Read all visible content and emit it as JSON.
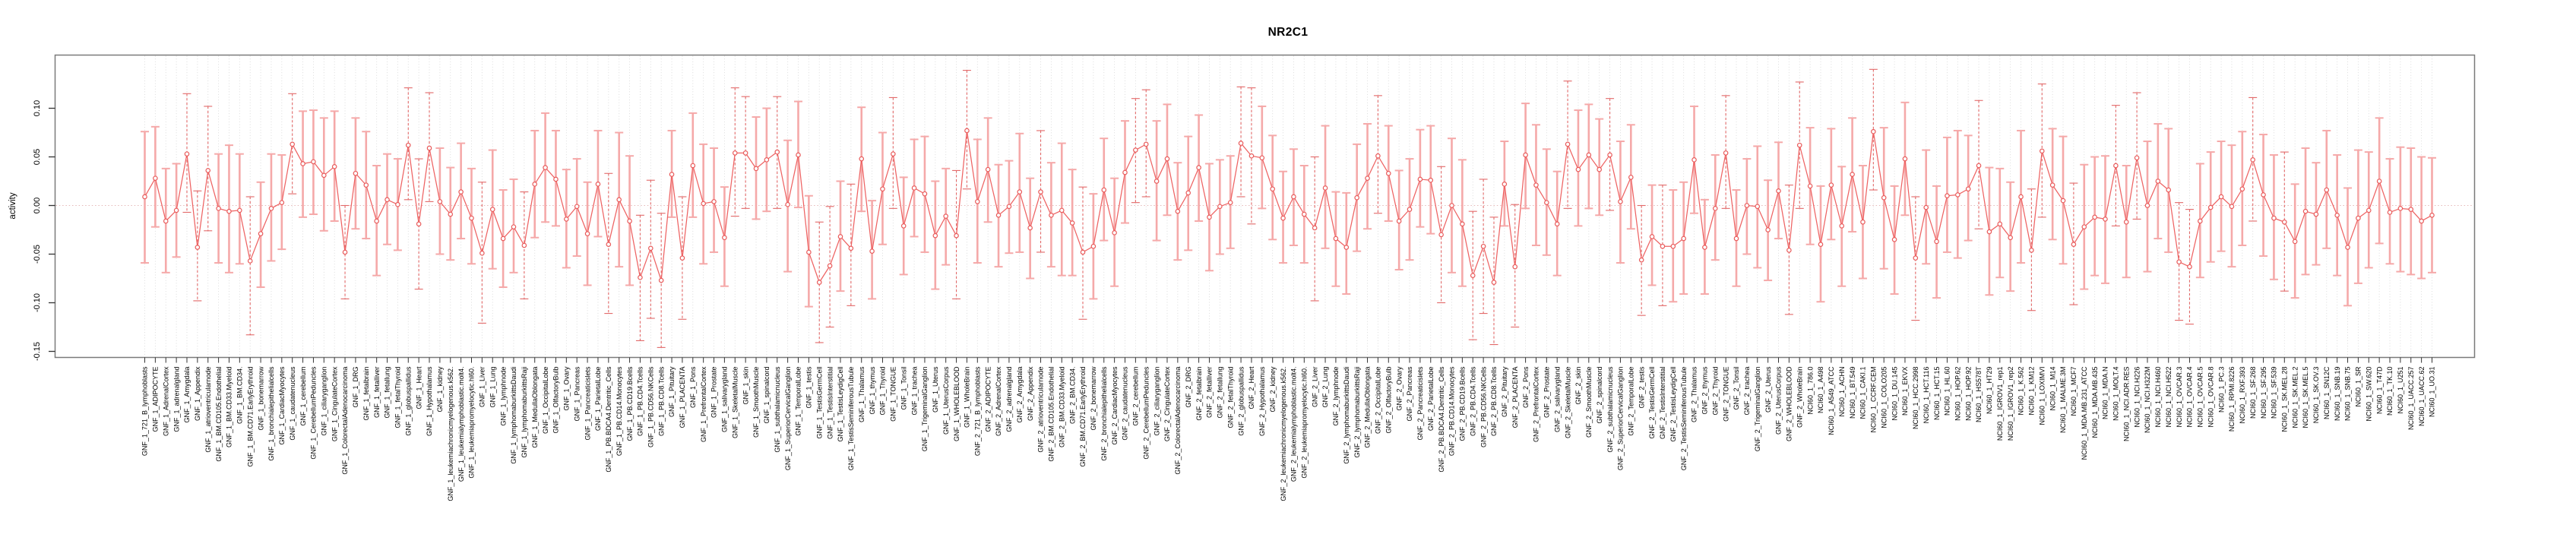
{
  "chart_data": {
    "type": "line",
    "subtype": "point-estimates-with-error-bars",
    "title": "NR2C1",
    "ylabel": "activity",
    "xlabel": "",
    "ylim": [
      -0.156,
      0.155
    ],
    "ytick_labels": [
      "0.10",
      "0.05",
      "0.00",
      "-0.05",
      "-0.10",
      "-0.15"
    ],
    "grid": "vertical-dotted-per-category-plus-dotted-zero-line",
    "legend_position": "none",
    "sample_groups": [
      "GNF_1",
      "GNF_2",
      "NCI60_1"
    ],
    "colors": {
      "bar_solid": "#f5a9a9",
      "bar_dashed": "#e26868",
      "line": "#ee6363",
      "marker": "#e95c5c",
      "grid": "#d8d8d8",
      "zero_line": "#e5b8b8",
      "box": "#7a7a7a",
      "tick": "#333333",
      "text": "#000000"
    },
    "categories": [
      "GNF_1_721_B_lymphoblasts",
      "GNF_1_ADIPOCYTE",
      "GNF_1_AdrenalCortex",
      "GNF_1_adrenalgland",
      "GNF_1_Amygdala",
      "GNF_1_Appendix",
      "GNF_1_atrioventricularnode",
      "GNF_1_BM.CD105.Endothelial",
      "GNF_1_BM.CD33.Myeloid",
      "GNF_1_BM.CD34.",
      "GNF_1_BM.CD71.EarlyErythroid",
      "GNF_1_bonemarrow",
      "GNF_1_bronchialepithelialcells",
      "GNF_1_CardiacMyocytes",
      "GNF_1_caudatenucleus",
      "GNF_1_cerebellum",
      "GNF_1_CerebellumPeduncles",
      "GNF_1_ciliaryganglion",
      "GNF_1_CingulateCortex",
      "GNF_1_ColorectalAdenocarcinoma",
      "GNF_1_DRG",
      "GNF_1_fetalbrain",
      "GNF_1_fetalliver",
      "GNF_1_fetallung",
      "GNF_1_fetalThyroid",
      "GNF_1_globuspallidus",
      "GNF_1_Heart",
      "GNF_1_Hypothalamus",
      "GNF_1_kidney",
      "GNF_1_leukemiachronicmyelogenous.k562.",
      "GNF_1_leukemialymphoblastic.molt4.",
      "GNF_1_leukemiapromyelocytic.hl60.",
      "GNF_1_Liver",
      "GNF_1_Lung",
      "GNF_1_lymphnode",
      "GNF_1_lymphomaburkittsDaudi",
      "GNF_1_lymphomaburkittsRaji",
      "GNF_1_MedullaOblongata",
      "GNF_1_OccipitalLobe",
      "GNF_1_OlfactoryBulb",
      "GNF_1_Ovary",
      "GNF_1_Pancreas",
      "GNF_1_Pancreaticislets",
      "GNF_1_ParietalLobe",
      "GNF_1_PB.BDCA4.Dentritic_Cells",
      "GNF_1_PB.CD14.Monocytes",
      "GNF_1_PB.CD19.Bcells",
      "GNF_1_PB.CD4.Tcells",
      "GNF_1_PB.CD56.NKCells",
      "GNF_1_PB.CD8.Tcells",
      "GNF_1_Pituitary",
      "GNF_1_PLACENTA",
      "GNF_1_Pons",
      "GNF_1_PrefrontalCortex",
      "GNF_1_Prostate",
      "GNF_1_salivarygland",
      "GNF_1_SkeletalMuscle",
      "GNF_1_skin",
      "GNF_1_SmoothMuscle",
      "GNF_1_spinalcord",
      "GNF_1_subthalamicnucleus",
      "GNF_1_SuperiorCervicalGanglion",
      "GNF_1_TemporalLobe",
      "GNF_1_testis",
      "GNF_1_TestisGermCell",
      "GNF_1_TestisInterstitial",
      "GNF_1_TestisLeydigCell",
      "GNF_1_TestisSeminiferousTubule",
      "GNF_1_Thalamus",
      "GNF_1_thymus",
      "GNF_1_Thyroid",
      "GNF_1_TONGUE",
      "GNF_1_Tonsil",
      "GNF_1_trachea",
      "GNF_1_TrigeminalGanglion",
      "GNF_1_Uterus",
      "GNF_1_UterusCorpus",
      "GNF_1_WHOLEBLOOD",
      "GNF_1_WholeBrain",
      "GNF_2_721_B_lymphoblasts",
      "GNF_2_ADIPOCYTE",
      "GNF_2_AdrenalCortex",
      "GNF_2_adrenalgland",
      "GNF_2_Amygdala",
      "GNF_2_Appendix",
      "GNF_2_atrioventricularnode",
      "GNF_2_BM.CD105.Endothelial",
      "GNF_2_BM.CD33.Myeloid",
      "GNF_2_BM.CD34.",
      "GNF_2_BM.CD71.EarlyErythroid",
      "GNF_2_bonemarrow",
      "GNF_2_bronchialepithelialcells",
      "GNF_2_CardiacMyocytes",
      "GNF_2_caudatenucleus",
      "GNF_2_cerebellum",
      "GNF_2_CerebellumPeduncles",
      "GNF_2_ciliaryganglion",
      "GNF_2_CingulateCortex",
      "GNF_2_ColorectalAdenocarcinoma",
      "GNF_2_DRG",
      "GNF_2_fetalbrain",
      "GNF_2_fetalliver",
      "GNF_2_fetallung",
      "GNF_2_fetalThyroid",
      "GNF_2_globuspallidus",
      "GNF_2_Heart",
      "GNF_2_Hypothalamus",
      "GNF_2_kidney",
      "GNF_2_leukemiachronicmyelogenous.k562.",
      "GNF_2_leukemialymphoblastic.molt4.",
      "GNF_2_leukemiapromyelocytic.hl60.",
      "GNF_2_Liver",
      "GNF_2_Lung",
      "GNF_2_lymphnode",
      "GNF_2_lymphomaburkittsDaudi",
      "GNF_2_lymphomaburkittsRaji",
      "GNF_2_MedullaOblongata",
      "GNF_2_OccipitalLobe",
      "GNF_2_OlfactoryBulb",
      "GNF_2_Ovary",
      "GNF_2_Pancreas",
      "GNF_2_Pancreaticislets",
      "GNF_2_ParietalLobe",
      "GNF_2_PB.BDCA4.Dentritic_Cells",
      "GNF_2_PB.CD14.Monocytes",
      "GNF_2_PB.CD19.Bcells",
      "GNF_2_PB.CD4.Tcells",
      "GNF_2_PB.CD56.NKCells",
      "GNF_2_PB.CD8.Tcells",
      "GNF_2_Pituitary",
      "GNF_2_PLACENTA",
      "GNF_2_Pons",
      "GNF_2_PrefrontalCortex",
      "GNF_2_Prostate",
      "GNF_2_salivarygland",
      "GNF_2_SkeletalMuscle",
      "GNF_2_skin",
      "GNF_2_SmoothMuscle",
      "GNF_2_spinalcord",
      "GNF_2_subthalamicnucleus",
      "GNF_2_SuperiorCervicalGanglion",
      "GNF_2_TemporalLobe",
      "GNF_2_testis",
      "GNF_2_TestisGermCell",
      "GNF_2_TestisInterstitial",
      "GNF_2_TestisLeydigCell",
      "GNF_2_TestisSeminiferousTubule",
      "GNF_2_Thalamus",
      "GNF_2_thymus",
      "GNF_2_Thyroid",
      "GNF_2_TONGUE",
      "GNF_2_Tonsil",
      "GNF_2_trachea",
      "GNF_2_TrigeminalGanglion",
      "GNF_2_Uterus",
      "GNF_2_UterusCorpus",
      "GNF_2_WHOLEBLOOD",
      "GNF_2_WholeBrain",
      "NCI60_1_786.0",
      "NCI60_1_A498",
      "NCI60_1_A549_ATCC",
      "NCI60_1_ACHN",
      "NCI60_1_BT.549",
      "NCI60_1_CAKI.1",
      "NCI60_1_CCRF.CEM",
      "NCI60_1_COLO205",
      "NCI60_1_DU.145",
      "NCI60_1_EKVX",
      "NCI60_1_HCC.2998",
      "NCI60_1_HCT.116",
      "NCI60_1_HCT.15",
      "NCI60_1_HL.60",
      "NCI60_1_HOP.62",
      "NCI60_1_HOP.92",
      "NCI60_1_HS578T",
      "NCI60_1_HT29",
      "NCI60_1_IGROV1_rep1",
      "NCI60_1_IGROV1_rep2",
      "NCI60_1_K.562",
      "NCI60_1_KM12",
      "NCI60_1_LOXIMVI",
      "NCI60_1_M14",
      "NCI60_1_MALME.3M",
      "NCI60_1_MCF7",
      "NCI60_1_MDA.MB.231_ATCC",
      "NCI60_1_MDA.MB.435",
      "NCI60_1_MDA.N",
      "NCI60_1_MOLT.4",
      "NCI60_1_NCI.ADR.RES",
      "NCI60_1_NCI.H226",
      "NCI60_1_NCI.H322M",
      "NCI60_1_NCI.H460",
      "NCI60_1_NCI.H522",
      "NCI60_1_OVCAR.3",
      "NCI60_1_OVCAR.4",
      "NCI60_1_OVCAR.5",
      "NCI60_1_OVCAR.8",
      "NCI60_1_PC.3",
      "NCI60_1_RPMI.8226",
      "NCI60_1_RXF.393",
      "NCI60_1_SF.268",
      "NCI60_1_SF.295",
      "NCI60_1_SF.539",
      "NCI60_1_SK.MEL.28",
      "NCI60_1_SK.MEL.2",
      "NCI60_1_SK.MEL.5",
      "NCI60_1_SK.OV.3",
      "NCI60_1_SN12C",
      "NCI60_1_SNB.19",
      "NCI60_1_SNB.75",
      "NCI60_1_SR",
      "NCI60_1_SW.620",
      "NCI60_1_T47D",
      "NCI60_1_TK.10",
      "NCI60_1_U251",
      "NCI60_1_UACC.257",
      "NCI60_1_UACC.62",
      "NCI60_1_UO.31"
    ],
    "values": [
      0.009,
      0.028,
      -0.016,
      -0.005,
      0.053,
      -0.043,
      0.036,
      -0.003,
      -0.006,
      -0.005,
      -0.057,
      -0.029,
      -0.003,
      0.003,
      0.063,
      0.043,
      0.045,
      0.031,
      0.04,
      -0.048,
      0.033,
      0.021,
      -0.016,
      0.006,
      0.001,
      0.062,
      -0.019,
      0.059,
      0.004,
      -0.009,
      0.014,
      -0.013,
      -0.049,
      -0.004,
      -0.034,
      -0.022,
      -0.041,
      0.022,
      0.039,
      0.027,
      -0.014,
      -0.001,
      -0.029,
      0.022,
      -0.04,
      0.006,
      -0.016,
      -0.074,
      -0.044,
      -0.077,
      0.032,
      -0.054,
      0.041,
      0.002,
      0.004,
      -0.033,
      0.054,
      0.054,
      0.038,
      0.047,
      0.055,
      0.001,
      0.052,
      -0.048,
      -0.079,
      -0.062,
      -0.032,
      -0.044,
      0.048,
      -0.047,
      0.017,
      0.053,
      -0.021,
      0.018,
      0.012,
      -0.031,
      -0.011,
      -0.031,
      0.077,
      0.004,
      0.037,
      -0.01,
      -0.001,
      0.014,
      -0.023,
      0.014,
      -0.01,
      -0.005,
      -0.018,
      -0.048,
      -0.042,
      0.016,
      -0.028,
      0.034,
      0.057,
      0.063,
      0.025,
      0.048,
      -0.006,
      0.013,
      0.039,
      -0.012,
      -0.001,
      0.003,
      0.064,
      0.051,
      0.049,
      0.017,
      -0.013,
      0.009,
      -0.009,
      -0.023,
      0.018,
      -0.034,
      -0.043,
      0.008,
      0.028,
      0.051,
      0.033,
      -0.016,
      -0.004,
      0.027,
      0.026,
      -0.03,
      0.0,
      -0.019,
      -0.072,
      -0.042,
      -0.079,
      0.022,
      -0.063,
      0.052,
      0.021,
      0.003,
      -0.019,
      0.063,
      0.037,
      0.052,
      0.037,
      0.052,
      0.004,
      0.029,
      -0.056,
      -0.032,
      -0.042,
      -0.042,
      -0.034,
      0.047,
      -0.043,
      -0.003,
      0.054,
      -0.034,
      0.0,
      -0.001,
      -0.025,
      0.015,
      -0.046,
      0.062,
      0.02,
      -0.04,
      0.021,
      -0.021,
      0.032,
      -0.017,
      0.076,
      0.008,
      -0.035,
      0.048,
      -0.054,
      -0.002,
      -0.037,
      0.01,
      0.011,
      0.017,
      0.041,
      -0.027,
      -0.019,
      -0.033,
      0.009,
      -0.046,
      0.056,
      0.021,
      0.005,
      -0.04,
      -0.022,
      -0.012,
      -0.014,
      0.041,
      -0.017,
      0.049,
      0.0,
      0.025,
      0.016,
      -0.058,
      -0.063,
      -0.016,
      -0.002,
      0.009,
      -0.001,
      0.017,
      0.047,
      0.011,
      -0.013,
      -0.017,
      -0.037,
      -0.006,
      -0.009,
      0.016,
      -0.01,
      -0.043,
      -0.013,
      -0.005,
      0.025,
      -0.007,
      -0.003,
      -0.004,
      -0.016,
      -0.01
    ],
    "lower": [
      -0.059,
      -0.022,
      -0.069,
      -0.053,
      -0.007,
      -0.098,
      -0.026,
      -0.059,
      -0.069,
      -0.06,
      -0.133,
      -0.084,
      -0.057,
      -0.045,
      0.012,
      -0.012,
      -0.009,
      -0.026,
      -0.016,
      -0.096,
      -0.024,
      -0.034,
      -0.072,
      -0.04,
      -0.046,
      0.006,
      -0.086,
      0.004,
      -0.05,
      -0.056,
      -0.034,
      -0.06,
      -0.121,
      -0.065,
      -0.084,
      -0.069,
      -0.096,
      -0.033,
      -0.017,
      -0.021,
      -0.064,
      -0.052,
      -0.082,
      -0.032,
      -0.111,
      -0.063,
      -0.082,
      -0.139,
      -0.116,
      -0.146,
      -0.012,
      -0.117,
      -0.012,
      -0.06,
      -0.048,
      -0.083,
      -0.011,
      -0.003,
      -0.014,
      -0.006,
      -0.003,
      -0.068,
      -0.002,
      -0.104,
      -0.141,
      -0.125,
      -0.088,
      -0.103,
      -0.006,
      -0.096,
      -0.04,
      -0.003,
      -0.071,
      -0.032,
      -0.048,
      -0.086,
      -0.061,
      -0.096,
      0.017,
      -0.059,
      -0.017,
      -0.063,
      -0.049,
      -0.048,
      -0.075,
      -0.048,
      -0.063,
      -0.072,
      -0.072,
      -0.117,
      -0.096,
      -0.036,
      -0.083,
      -0.018,
      0.003,
      0.009,
      -0.036,
      -0.01,
      -0.056,
      -0.046,
      -0.016,
      -0.067,
      -0.05,
      -0.044,
      0.009,
      -0.019,
      -0.003,
      -0.035,
      -0.059,
      -0.041,
      -0.059,
      -0.098,
      -0.044,
      -0.083,
      -0.091,
      -0.047,
      -0.024,
      -0.008,
      -0.016,
      -0.066,
      -0.056,
      -0.022,
      -0.029,
      -0.1,
      -0.069,
      -0.083,
      -0.138,
      -0.111,
      -0.143,
      -0.021,
      -0.125,
      -0.003,
      -0.041,
      -0.051,
      -0.072,
      -0.003,
      -0.021,
      -0.003,
      -0.01,
      -0.005,
      -0.059,
      -0.024,
      -0.113,
      -0.082,
      -0.103,
      -0.099,
      -0.091,
      -0.008,
      -0.091,
      -0.056,
      -0.003,
      -0.083,
      -0.05,
      -0.064,
      -0.077,
      -0.034,
      -0.112,
      -0.003,
      -0.04,
      -0.099,
      -0.035,
      -0.083,
      -0.027,
      -0.075,
      0.016,
      -0.065,
      -0.091,
      -0.01,
      -0.118,
      -0.06,
      -0.095,
      -0.048,
      -0.054,
      -0.036,
      -0.024,
      -0.092,
      -0.074,
      -0.088,
      -0.059,
      -0.108,
      -0.012,
      -0.035,
      -0.06,
      -0.102,
      -0.086,
      -0.072,
      -0.08,
      -0.021,
      -0.074,
      -0.014,
      -0.068,
      -0.034,
      -0.048,
      -0.118,
      -0.122,
      -0.074,
      -0.058,
      -0.047,
      -0.063,
      -0.041,
      -0.016,
      -0.052,
      -0.076,
      -0.088,
      -0.095,
      -0.071,
      -0.061,
      -0.044,
      -0.072,
      -0.103,
      -0.08,
      -0.064,
      -0.039,
      -0.06,
      -0.068,
      -0.071,
      -0.075,
      -0.069
    ],
    "upper": [
      0.076,
      0.081,
      0.038,
      0.043,
      0.115,
      0.015,
      0.102,
      0.053,
      0.062,
      0.053,
      0.009,
      0.024,
      0.053,
      0.052,
      0.115,
      0.097,
      0.098,
      0.09,
      0.097,
      0.0,
      0.09,
      0.076,
      0.041,
      0.053,
      0.048,
      0.121,
      0.048,
      0.116,
      0.059,
      0.039,
      0.064,
      0.038,
      0.024,
      0.057,
      0.016,
      0.027,
      0.014,
      0.077,
      0.095,
      0.077,
      0.037,
      0.048,
      0.024,
      0.077,
      0.033,
      0.075,
      0.051,
      -0.01,
      0.026,
      -0.008,
      0.077,
      0.009,
      0.095,
      0.063,
      0.059,
      0.019,
      0.121,
      0.112,
      0.091,
      0.1,
      0.112,
      0.067,
      0.107,
      0.01,
      -0.017,
      -0.001,
      0.025,
      0.022,
      0.101,
      0.005,
      0.075,
      0.111,
      0.029,
      0.068,
      0.071,
      0.025,
      0.038,
      0.036,
      0.139,
      0.068,
      0.09,
      0.042,
      0.046,
      0.074,
      0.028,
      0.077,
      0.044,
      0.064,
      0.037,
      0.019,
      0.012,
      0.069,
      0.028,
      0.087,
      0.11,
      0.119,
      0.087,
      0.104,
      0.044,
      0.071,
      0.093,
      0.043,
      0.047,
      0.051,
      0.122,
      0.121,
      0.102,
      0.072,
      0.035,
      0.058,
      0.041,
      0.05,
      0.082,
      0.014,
      0.013,
      0.063,
      0.084,
      0.113,
      0.082,
      0.036,
      0.048,
      0.078,
      0.082,
      0.04,
      0.069,
      0.047,
      -0.006,
      0.027,
      -0.012,
      0.066,
      0.001,
      0.105,
      0.083,
      0.058,
      0.035,
      0.128,
      0.098,
      0.104,
      0.089,
      0.11,
      0.066,
      0.083,
      0.0,
      0.021,
      0.021,
      0.016,
      0.024,
      0.102,
      0.006,
      0.052,
      0.113,
      0.016,
      0.048,
      0.061,
      0.026,
      0.065,
      0.021,
      0.127,
      0.08,
      0.02,
      0.079,
      0.04,
      0.09,
      0.041,
      0.14,
      0.08,
      0.02,
      0.106,
      0.009,
      0.057,
      0.02,
      0.07,
      0.077,
      0.072,
      0.108,
      0.039,
      0.038,
      0.024,
      0.077,
      0.017,
      0.125,
      0.079,
      0.071,
      0.023,
      0.042,
      0.05,
      0.051,
      0.103,
      0.041,
      0.116,
      0.066,
      0.084,
      0.079,
      0.003,
      -0.004,
      0.043,
      0.055,
      0.066,
      0.062,
      0.076,
      0.111,
      0.073,
      0.052,
      0.055,
      0.022,
      0.059,
      0.044,
      0.077,
      0.052,
      0.018,
      0.057,
      0.055,
      0.09,
      0.048,
      0.06,
      0.059,
      0.05,
      0.049
    ],
    "dashed_bar_indices": [
      4,
      5,
      6,
      10,
      14,
      19,
      25,
      26,
      27,
      32,
      36,
      44,
      47,
      48,
      49,
      51,
      56,
      57,
      60,
      64,
      65,
      67,
      71,
      77,
      78,
      85,
      89,
      94,
      95,
      104,
      105,
      111,
      117,
      123,
      126,
      127,
      128,
      130,
      135,
      139,
      142,
      144,
      150,
      156,
      157,
      164,
      168,
      174,
      179,
      180,
      183,
      187,
      189,
      193,
      194,
      200,
      203
    ]
  }
}
